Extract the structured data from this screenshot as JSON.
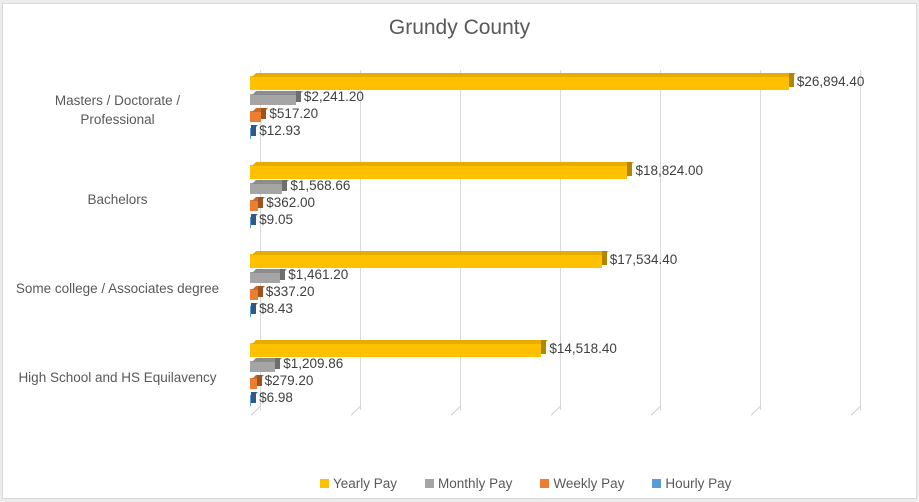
{
  "chart_data": {
    "type": "bar",
    "orientation": "horizontal",
    "style": "3d-clustered",
    "title": "Grundy County",
    "xlabel": "",
    "ylabel": "",
    "xlim": [
      0,
      30000
    ],
    "grid": true,
    "legend_position": "bottom",
    "categories": [
      "Masters / Doctorate / Professional",
      "Bachelors",
      "Some college / Associates degree",
      "High School and HS Equilavency"
    ],
    "series": [
      {
        "name": "Yearly Pay",
        "color": "#FFC000",
        "values": [
          26894.4,
          18824.0,
          17534.4,
          14518.4
        ],
        "labels": [
          "$26,894.40",
          "$18,824.00",
          "$17,534.40",
          "$14,518.40"
        ]
      },
      {
        "name": "Monthly Pay",
        "color": "#A5A5A5",
        "values": [
          2241.2,
          1568.66,
          1461.2,
          1209.86
        ],
        "labels": [
          "$2,241.20",
          "$1,568.66",
          "$1,461.20",
          "$1,209.86"
        ]
      },
      {
        "name": "Weekly Pay",
        "color": "#ED7D31",
        "values": [
          517.2,
          362.0,
          337.2,
          279.2
        ],
        "labels": [
          "$517.20",
          "$362.00",
          "$337.20",
          "$279.20"
        ]
      },
      {
        "name": "Hourly Pay",
        "color": "#5B9BD5",
        "values": [
          12.93,
          9.05,
          8.43,
          6.98
        ],
        "labels": [
          "$12.93",
          "$9.05",
          "$8.43",
          "$6.98"
        ]
      }
    ]
  },
  "colors": {
    "yearly_top": "#E6AC00",
    "yearly_side": "#B38600",
    "monthly_top": "#8C8C8C",
    "monthly_side": "#6E6E6E",
    "weekly_top": "#C96A29",
    "weekly_side": "#9E5220",
    "hourly_top": "#3E78AE",
    "hourly_side": "#2E5B85"
  }
}
